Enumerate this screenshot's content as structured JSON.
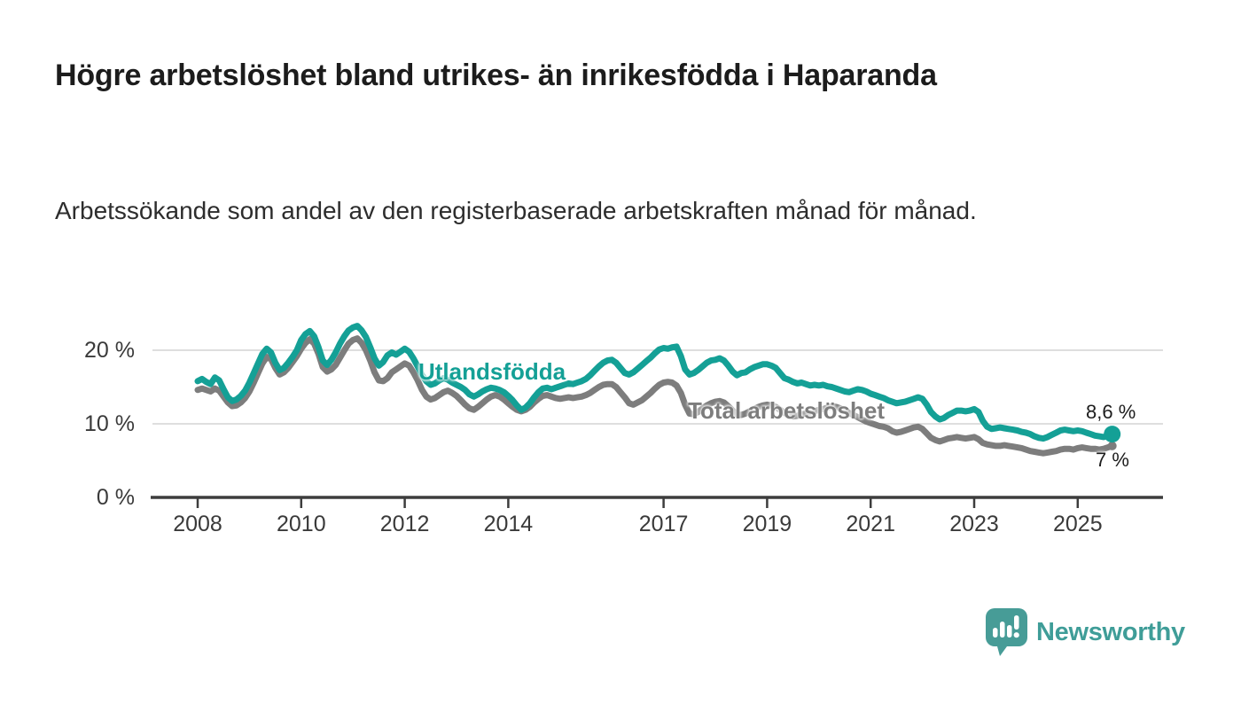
{
  "header": {
    "title": "Högre arbetslöshet bland utrikes- än inrikesfödda i Haparanda",
    "subtitle": "Arbetssökande som andel av den registerbaserade arbetskraften månad för månad."
  },
  "chart_data": {
    "type": "line",
    "title": "Högre arbetslöshet bland utrikes- än inrikesfödda i Haparanda",
    "subtitle": "Arbetssökande som andel av den registerbaserade arbetskraften månad för månad.",
    "unit": "%",
    "x_start_year": 2008,
    "x_step_months": 1,
    "x_ticks": [
      2008,
      2010,
      2012,
      2014,
      2017,
      2019,
      2021,
      2023,
      2025
    ],
    "y_ticks": [
      {
        "value": 0,
        "label": "0 %"
      },
      {
        "value": 10,
        "label": "10 %"
      },
      {
        "value": 20,
        "label": "20 %"
      }
    ],
    "ylim": [
      0,
      25
    ],
    "grid": "horizontal",
    "legend_position": "inline-labels",
    "series": [
      {
        "name": "Total arbetslöshet",
        "color": "#7d7d7d",
        "end_label": "7 %",
        "end_dot_radius": 5,
        "values": [
          14.6,
          14.8,
          14.6,
          14.4,
          14.8,
          14.5,
          13.7,
          12.9,
          12.4,
          12.5,
          12.9,
          13.5,
          14.4,
          15.6,
          16.9,
          18.2,
          19.1,
          18.8,
          17.6,
          16.7,
          17.0,
          17.6,
          18.4,
          19.2,
          20.2,
          21.0,
          21.5,
          20.9,
          19.5,
          17.7,
          17.1,
          17.4,
          18.0,
          19.0,
          20.0,
          20.9,
          21.4,
          21.6,
          21.0,
          20.0,
          18.6,
          17.0,
          15.9,
          15.8,
          16.2,
          17.0,
          17.4,
          17.8,
          18.2,
          17.9,
          17.0,
          15.9,
          14.6,
          13.7,
          13.3,
          13.5,
          13.9,
          14.3,
          14.5,
          14.2,
          13.8,
          13.2,
          12.6,
          12.1,
          11.9,
          12.3,
          12.8,
          13.3,
          13.7,
          13.9,
          13.7,
          13.3,
          12.8,
          12.3,
          11.9,
          11.7,
          11.9,
          12.3,
          12.9,
          13.4,
          13.8,
          13.9,
          13.7,
          13.5,
          13.4,
          13.5,
          13.6,
          13.5,
          13.6,
          13.7,
          13.9,
          14.2,
          14.6,
          15.0,
          15.3,
          15.4,
          15.4,
          15.0,
          14.3,
          13.6,
          12.8,
          12.6,
          12.9,
          13.2,
          13.7,
          14.2,
          14.8,
          15.3,
          15.6,
          15.7,
          15.6,
          15.2,
          14.2,
          12.6,
          11.4,
          11.3,
          11.6,
          12.1,
          12.5,
          12.8,
          13.0,
          13.1,
          12.9,
          12.4,
          11.8,
          11.3,
          11.2,
          11.4,
          11.7,
          12.0,
          12.3,
          12.5,
          12.6,
          12.5,
          12.3,
          11.9,
          11.5,
          11.2,
          11.0,
          11.1,
          11.3,
          11.4,
          11.5,
          11.7,
          11.9,
          12.0,
          12.2,
          12.4,
          12.3,
          12.1,
          11.8,
          11.5,
          11.2,
          10.9,
          10.6,
          10.3,
          10.1,
          9.9,
          9.7,
          9.6,
          9.4,
          9.0,
          8.8,
          8.9,
          9.1,
          9.3,
          9.5,
          9.6,
          9.3,
          8.7,
          8.1,
          7.8,
          7.6,
          7.8,
          8.0,
          8.1,
          8.2,
          8.1,
          8.0,
          8.1,
          8.2,
          7.9,
          7.4,
          7.2,
          7.1,
          7.0,
          7.0,
          7.1,
          7.0,
          6.9,
          6.8,
          6.7,
          6.5,
          6.3,
          6.2,
          6.1,
          6.0,
          6.1,
          6.2,
          6.3,
          6.5,
          6.6,
          6.6,
          6.5,
          6.7,
          6.8,
          6.7,
          6.6,
          6.6,
          6.5,
          6.6,
          6.8,
          7.0
        ]
      },
      {
        "name": "Utlandsfödda",
        "color": "#14a096",
        "end_label": "8,6 %",
        "end_dot_radius": 9.5,
        "values": [
          15.8,
          16.1,
          15.7,
          15.4,
          16.3,
          15.9,
          14.7,
          13.6,
          13.1,
          13.3,
          13.8,
          14.5,
          15.6,
          16.9,
          18.2,
          19.5,
          20.2,
          19.7,
          18.3,
          17.3,
          17.6,
          18.3,
          19.1,
          20.0,
          21.4,
          22.2,
          22.6,
          21.9,
          20.4,
          18.6,
          18.0,
          18.7,
          19.7,
          20.9,
          21.9,
          22.7,
          23.1,
          23.3,
          22.7,
          21.8,
          20.4,
          18.9,
          17.9,
          18.4,
          19.3,
          19.7,
          19.4,
          19.8,
          20.2,
          19.8,
          18.9,
          17.8,
          16.6,
          15.8,
          15.3,
          15.5,
          15.9,
          16.2,
          16.0,
          15.6,
          15.3,
          15.0,
          14.6,
          14.0,
          13.7,
          14.0,
          14.4,
          14.7,
          14.9,
          14.8,
          14.6,
          14.3,
          13.8,
          13.2,
          12.5,
          11.9,
          12.2,
          12.8,
          13.6,
          14.3,
          14.8,
          14.9,
          14.7,
          14.9,
          15.1,
          15.3,
          15.5,
          15.4,
          15.6,
          15.8,
          16.1,
          16.6,
          17.2,
          17.8,
          18.3,
          18.6,
          18.7,
          18.3,
          17.6,
          16.9,
          16.7,
          17.0,
          17.5,
          18.0,
          18.5,
          19.0,
          19.6,
          20.1,
          20.3,
          20.2,
          20.4,
          20.5,
          19.2,
          17.4,
          16.7,
          16.9,
          17.3,
          17.8,
          18.3,
          18.6,
          18.7,
          18.9,
          18.6,
          17.9,
          17.1,
          16.6,
          16.9,
          17.0,
          17.4,
          17.7,
          17.9,
          18.1,
          18.1,
          17.9,
          17.6,
          16.9,
          16.2,
          16.0,
          15.7,
          15.5,
          15.6,
          15.4,
          15.2,
          15.3,
          15.2,
          15.3,
          15.1,
          15.0,
          14.8,
          14.6,
          14.4,
          14.3,
          14.5,
          14.7,
          14.6,
          14.4,
          14.1,
          13.9,
          13.7,
          13.5,
          13.2,
          13.0,
          12.8,
          12.9,
          13.0,
          13.2,
          13.4,
          13.6,
          13.4,
          12.6,
          11.6,
          11.0,
          10.6,
          10.8,
          11.2,
          11.5,
          11.8,
          11.8,
          11.7,
          11.8,
          12.0,
          11.6,
          10.4,
          9.6,
          9.3,
          9.4,
          9.5,
          9.4,
          9.3,
          9.2,
          9.1,
          8.9,
          8.8,
          8.6,
          8.3,
          8.1,
          8.0,
          8.2,
          8.5,
          8.8,
          9.1,
          9.2,
          9.1,
          9.0,
          9.1,
          9.0,
          8.8,
          8.6,
          8.4,
          8.3,
          8.2,
          8.4,
          8.6
        ]
      }
    ]
  },
  "footer": {
    "brand": "Newsworthy"
  },
  "colors": {
    "accent_teal": "#14a096",
    "series_gray": "#7d7d7d",
    "grid": "#dedede",
    "axis": "#3d3d3d",
    "logo_teal": "#479c97",
    "wordmark_teal": "#3f9d98"
  }
}
